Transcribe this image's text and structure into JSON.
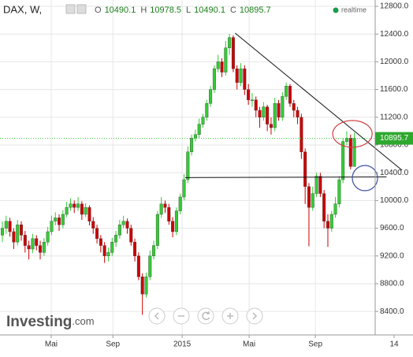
{
  "chart_data": {
    "type": "candlestick",
    "title": "DAX, W,",
    "ohlc_labels": [
      "O",
      "H",
      "L",
      "C"
    ],
    "status": "realtime",
    "logo": {
      "main": "Investing",
      "suffix": ".com"
    },
    "up_color": "#33cc33",
    "down_color": "#cc0000",
    "grid": true,
    "categories": [
      null,
      null,
      null,
      null,
      null,
      null,
      null,
      null,
      null,
      null,
      null,
      null,
      null,
      null,
      null,
      null,
      null,
      null,
      null,
      null,
      null,
      null,
      null,
      null,
      null,
      null,
      null,
      null,
      null,
      null,
      null,
      null,
      null,
      null,
      null,
      null,
      null,
      null,
      null,
      null,
      null,
      null,
      null,
      null,
      null,
      null,
      null,
      null,
      null,
      null,
      null,
      null,
      null,
      null,
      null,
      null,
      null,
      null,
      null,
      null,
      null,
      null,
      null,
      null,
      null,
      null,
      null,
      null,
      null,
      null,
      null,
      null,
      null,
      null,
      null,
      null,
      null,
      null,
      null,
      null,
      null,
      null,
      null,
      null,
      null,
      null,
      null,
      null,
      null,
      null,
      null,
      null,
      null,
      null
    ],
    "open": [
      9500,
      9600,
      9700,
      9550,
      9400,
      9650,
      9500,
      9350,
      9300,
      9450,
      9350,
      9250,
      9400,
      9550,
      9700,
      9750,
      9650,
      9800,
      9900,
      9950,
      9900,
      9950,
      9800,
      9900,
      9700,
      9600,
      9450,
      9350,
      9200,
      9250,
      9400,
      9500,
      9650,
      9700,
      9600,
      9400,
      9200,
      8900,
      8650,
      8900,
      9200,
      9350,
      9800,
      9950,
      9900,
      9700,
      9550,
      9850,
      10050,
      10300,
      10700,
      10900,
      10950,
      11100,
      11200,
      11400,
      11600,
      11900,
      12000,
      11850,
      12200,
      12350,
      11900,
      11700,
      11900,
      11600,
      11450,
      11450,
      11300,
      11200,
      11350,
      11100,
      11050,
      11400,
      11200,
      11500,
      11650,
      11400,
      11300,
      11200,
      10700,
      10200,
      9900,
      10100,
      10350,
      10100,
      9700,
      9600,
      9800,
      9950,
      10300,
      10850,
      10900,
      10490.1
    ],
    "high": [
      9700,
      9780,
      9750,
      9600,
      9720,
      9700,
      9560,
      9420,
      9520,
      9500,
      9420,
      9460,
      9620,
      9780,
      9830,
      9800,
      9860,
      9980,
      10030,
      10000,
      10050,
      9990,
      9960,
      9930,
      9760,
      9650,
      9500,
      9400,
      9320,
      9460,
      9560,
      9720,
      9780,
      9740,
      9650,
      9450,
      9250,
      8950,
      8960,
      9280,
      9420,
      9850,
      10050,
      10000,
      9950,
      9760,
      9900,
      10100,
      10380,
      10780,
      10950,
      11020,
      11180,
      11250,
      11450,
      11650,
      11950,
      12100,
      12050,
      12300,
      12400,
      12380,
      11950,
      11980,
      11950,
      11680,
      11550,
      11500,
      11350,
      11420,
      11380,
      11200,
      11480,
      11450,
      11560,
      11700,
      11680,
      11450,
      11350,
      11250,
      10750,
      10250,
      10200,
      10400,
      10400,
      10150,
      9800,
      9850,
      10050,
      10350,
      10900,
      11000,
      10950,
      10978.5
    ],
    "low": [
      9400,
      9520,
      9480,
      9300,
      9350,
      9420,
      9250,
      9150,
      9240,
      9280,
      9150,
      9200,
      9350,
      9500,
      9640,
      9560,
      9600,
      9760,
      9850,
      9820,
      9850,
      9720,
      9760,
      9640,
      9520,
      9380,
      9250,
      9100,
      9120,
      9200,
      9330,
      9450,
      9600,
      9520,
      9350,
      9120,
      8850,
      8350,
      8600,
      8850,
      9150,
      9300,
      9750,
      9820,
      9650,
      9470,
      9500,
      9800,
      10000,
      10250,
      10650,
      10850,
      10900,
      11050,
      11150,
      11350,
      11550,
      11850,
      11780,
      11800,
      12100,
      11850,
      11600,
      11650,
      11520,
      11380,
      11350,
      11200,
      11050,
      11150,
      11000,
      10950,
      11000,
      11150,
      11150,
      11450,
      11350,
      11200,
      11100,
      10600,
      9950,
      9340,
      9850,
      10050,
      10050,
      9600,
      9330,
      9550,
      9750,
      9900,
      10250,
      10800,
      10450,
      10490.1
    ],
    "close": [
      9600,
      9700,
      9550,
      9400,
      9650,
      9500,
      9350,
      9300,
      9450,
      9350,
      9250,
      9400,
      9550,
      9700,
      9750,
      9650,
      9800,
      9900,
      9950,
      9900,
      9950,
      9800,
      9900,
      9700,
      9600,
      9450,
      9350,
      9200,
      9250,
      9400,
      9500,
      9650,
      9700,
      9600,
      9400,
      9200,
      8900,
      8650,
      8900,
      9200,
      9350,
      9800,
      9950,
      9900,
      9700,
      9550,
      9850,
      10050,
      10300,
      10700,
      10900,
      10950,
      11100,
      11200,
      11400,
      11600,
      11900,
      12000,
      11850,
      12200,
      12350,
      11900,
      11700,
      11900,
      11600,
      11450,
      11450,
      11300,
      11200,
      11350,
      11100,
      11050,
      11400,
      11200,
      11500,
      11650,
      11400,
      11300,
      11200,
      10700,
      10200,
      9900,
      10100,
      10350,
      10100,
      9700,
      9600,
      9800,
      9950,
      10300,
      10850,
      10900,
      10490.1,
      10895.7
    ],
    "xlim": [
      -0.625,
      98.5
    ],
    "xticks": [
      {
        "value": 12.9,
        "label": "Mai"
      },
      {
        "value": 29.2,
        "label": "Sep"
      },
      {
        "value": 47.5,
        "label": "2015"
      },
      {
        "value": 65.2,
        "label": "Mai"
      },
      {
        "value": 82.7,
        "label": "Sep"
      },
      {
        "value": 103.5,
        "label": "14"
      }
    ],
    "ylim": [
      8061,
      12891
    ],
    "yticks": [
      {
        "value": 8400,
        "label": "8400.0"
      },
      {
        "value": 8800,
        "label": "8800.0"
      },
      {
        "value": 9200,
        "label": "9200.0"
      },
      {
        "value": 9600,
        "label": "9600.0"
      },
      {
        "value": 10000,
        "label": "10000.0"
      },
      {
        "value": 10400,
        "label": "10400.0"
      },
      {
        "value": 10800,
        "label": "10800.0"
      },
      {
        "value": 11200,
        "label": "11200.0"
      },
      {
        "value": 11600,
        "label": "11600.0"
      },
      {
        "value": 12000,
        "label": "12000.0"
      },
      {
        "value": 12400,
        "label": "12400.0"
      },
      {
        "value": 12800,
        "label": "12800.0"
      }
    ],
    "trendlines": [
      {
        "x": [
          61.5,
          105.6
        ],
        "y": [
          12414,
          10436
        ]
      },
      {
        "x": [
          48.3,
          101.5
        ],
        "y": [
          10330,
          10340
        ]
      }
    ],
    "circles": [
      {
        "x": 92.5,
        "y": 10960,
        "color": "#d04040"
      },
      {
        "x": 95.8,
        "y": 10323,
        "color": "#3a4fa0"
      }
    ]
  }
}
